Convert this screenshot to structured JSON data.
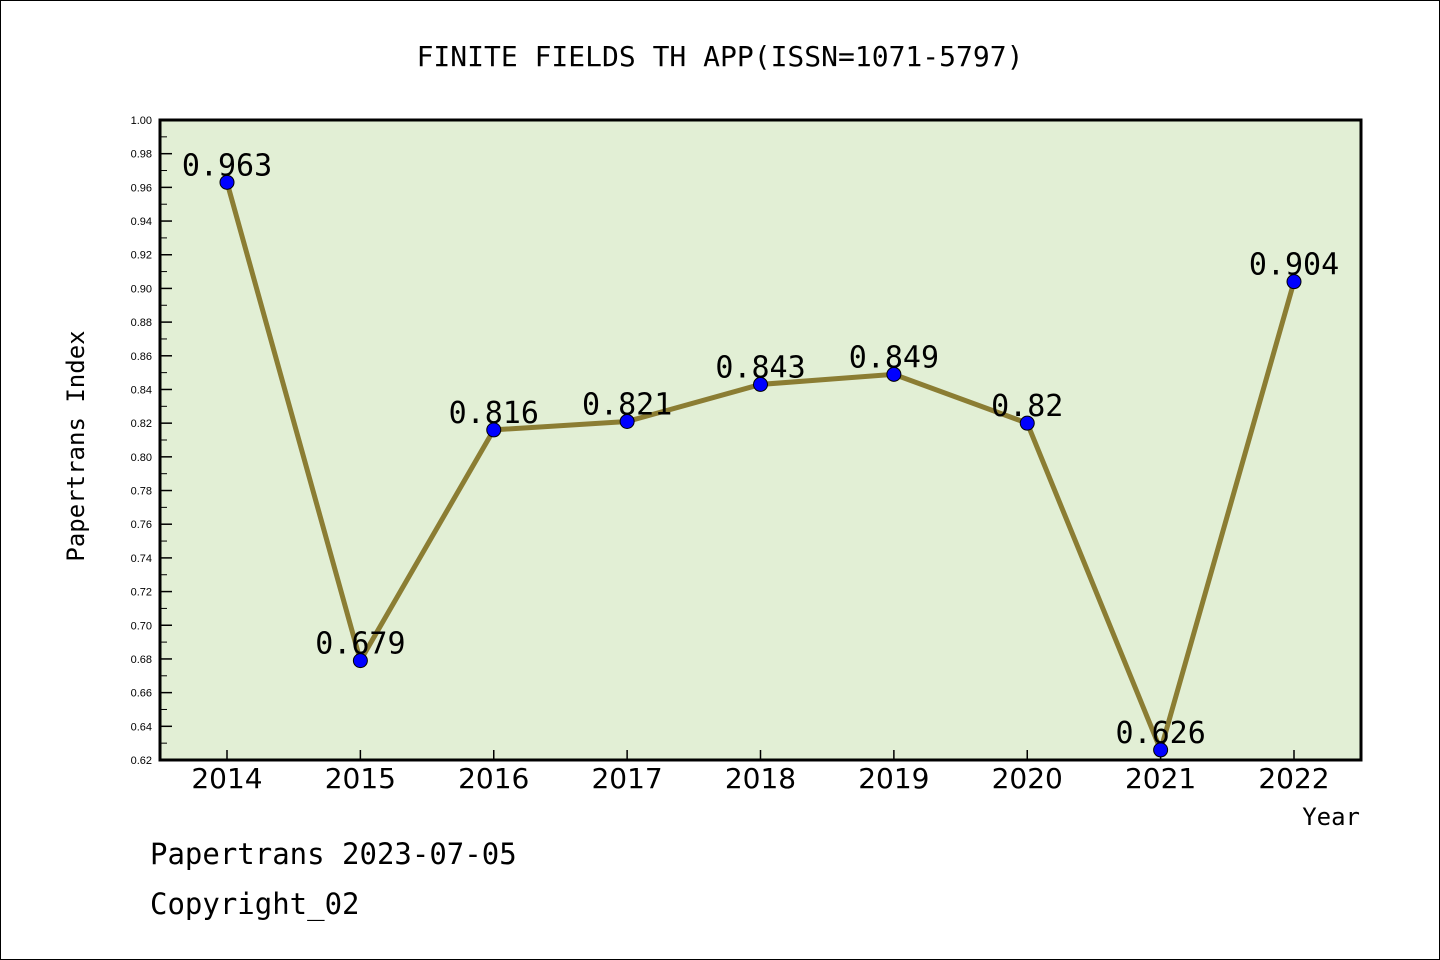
{
  "chart_data": {
    "type": "line",
    "title": "FINITE FIELDS TH APP(ISSN=1071-5797)",
    "xlabel": "Year",
    "ylabel": "Papertrans Index",
    "categories": [
      "2014",
      "2015",
      "2016",
      "2017",
      "2018",
      "2019",
      "2020",
      "2021",
      "2022"
    ],
    "values": [
      0.963,
      0.679,
      0.816,
      0.821,
      0.843,
      0.849,
      0.82,
      0.626,
      0.904
    ],
    "data_labels": [
      "0.963",
      "0.679",
      "0.816",
      "0.821",
      "0.843",
      "0.849",
      "0.82",
      "0.626",
      "0.904"
    ],
    "ylim": [
      0.62,
      1.0
    ],
    "yticks": [
      "0.62",
      "0.64",
      "0.66",
      "0.68",
      "0.70",
      "0.72",
      "0.74",
      "0.76",
      "0.78",
      "0.80",
      "0.82",
      "0.84",
      "0.86",
      "0.88",
      "0.90",
      "0.92",
      "0.94",
      "0.96",
      "0.98",
      "1.00"
    ],
    "colors": {
      "plot_background": "#e2efd5",
      "line": "#8b7d33",
      "marker": "#0000ff"
    },
    "grid": false,
    "legend": "none"
  },
  "footer": {
    "line1": "Papertrans 2023-07-05",
    "line2": "Copyright_02"
  }
}
